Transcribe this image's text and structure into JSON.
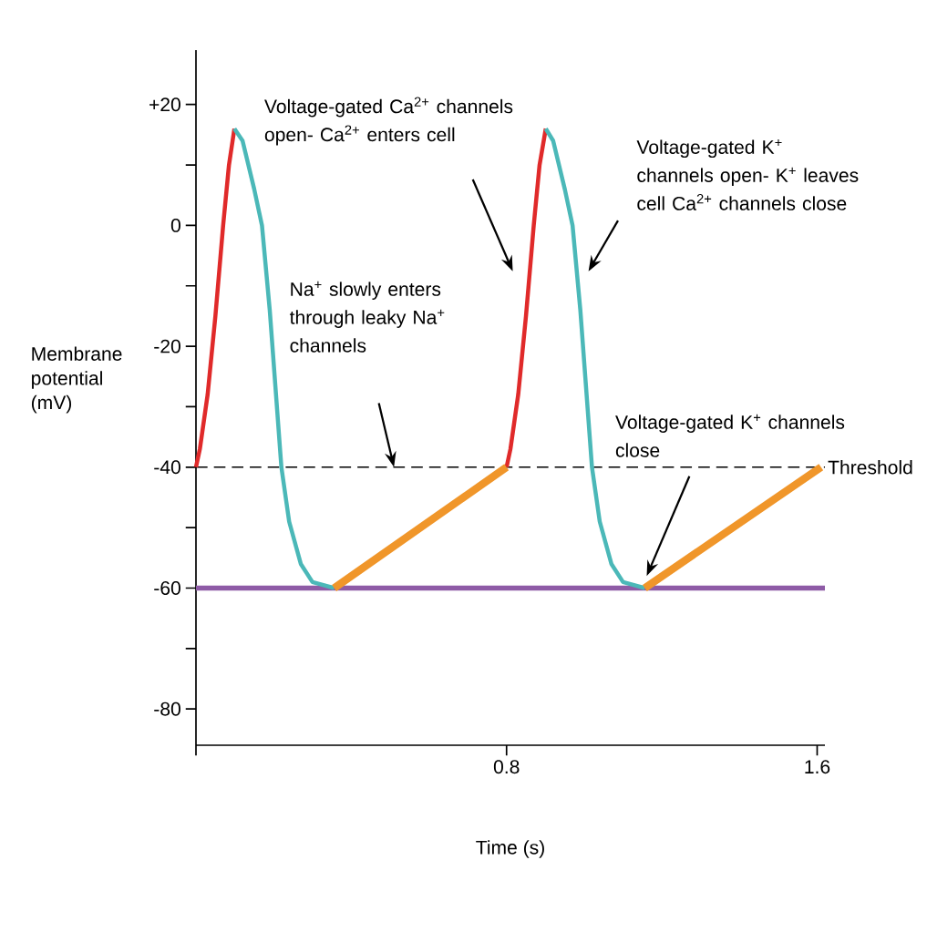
{
  "chart_data": {
    "type": "line",
    "xlabel": "Time (s)",
    "ylabel": "Membrane potential (mV)",
    "xlim": [
      0,
      1.62
    ],
    "ylim": [
      -86,
      29
    ],
    "xticks": [
      {
        "value": 0,
        "label": null
      },
      0.8,
      1.6
    ],
    "yticks": [
      {
        "value": 20,
        "label": "+20"
      },
      {
        "value": 10,
        "label": null
      },
      0,
      {
        "value": -10,
        "label": null
      },
      -20,
      {
        "value": -30,
        "label": null
      },
      -40,
      {
        "value": -50,
        "label": null
      },
      -60,
      {
        "value": -70,
        "label": null
      },
      -80
    ],
    "series": [
      {
        "type": "line",
        "color": "#e02a2a",
        "x": [
          0,
          0.01,
          0.03,
          0.05,
          0.07,
          0.085,
          0.099,
          null,
          0.8,
          0.81,
          0.83,
          0.85,
          0.87,
          0.885,
          0.901
        ],
        "values": [
          -40,
          -37,
          -28,
          -15,
          0,
          10,
          16,
          null,
          -40,
          -37,
          -28,
          -15,
          0,
          10,
          16
        ]
      },
      {
        "type": "line",
        "color": "#4bb8b8",
        "x": [
          0.099,
          0.12,
          0.15,
          0.17,
          0.19,
          0.22,
          0.24,
          0.27,
          0.3,
          0.356,
          null,
          0.901,
          0.92,
          0.95,
          0.97,
          0.99,
          1.02,
          1.04,
          1.07,
          1.1,
          1.156
        ],
        "values": [
          16,
          14,
          6,
          0,
          -14,
          -40,
          -49,
          -56,
          -59,
          -60,
          null,
          16,
          14,
          6,
          0,
          -14,
          -40,
          -49,
          -56,
          -59,
          -60
        ]
      },
      {
        "type": "line",
        "color": "#f0962a",
        "x": [
          0.356,
          0.8,
          null,
          1.156,
          1.61
        ],
        "values": [
          -60,
          -40,
          null,
          -60,
          -40
        ]
      }
    ],
    "ref_lines": [
      {
        "axis": "y",
        "value": -40,
        "label": "Threshold",
        "color": "#000000",
        "line_style": "dashed"
      },
      {
        "axis": "y",
        "value": -60,
        "color": "#8e5ba6",
        "line_style": "solid"
      }
    ],
    "annotations": [
      "Voltage-gated Ca$^{2+}$ channels open- Ca$^{2+}$ enters cell",
      "Voltage-gated K$^{+}$ channels open- K$^{+}$ leaves cell Ca$^{2+}$ channels close",
      "Na$^{+}$ slowly enters through leaky Na$^{+}$ channels",
      "Voltage-gated K$^{+}$ channels close"
    ]
  }
}
